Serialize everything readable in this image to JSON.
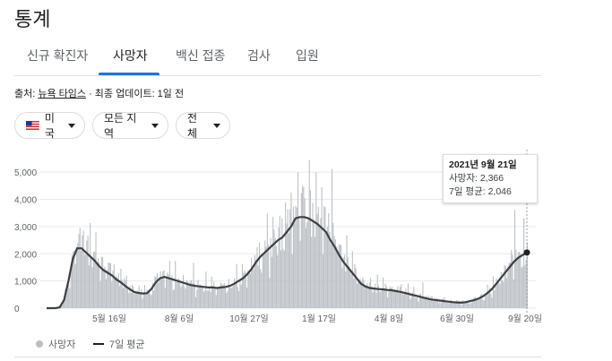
{
  "header": {
    "title": "통계"
  },
  "tabs": [
    {
      "label": "신규 확진자",
      "active": false
    },
    {
      "label": "사망자",
      "active": true
    },
    {
      "label": "백신 접종",
      "active": false
    },
    {
      "label": "검사",
      "active": false
    },
    {
      "label": "입원",
      "active": false
    }
  ],
  "source": {
    "prefix": "출처:",
    "link": "뉴욕 타임스",
    "suffix": "· 최종 업데이트: 1일 전"
  },
  "filters": {
    "country": {
      "label": "미국",
      "icon": "us-flag-icon"
    },
    "region": {
      "label": "모든 지역"
    },
    "scope": {
      "label": "전체"
    }
  },
  "tooltip": {
    "date": "2021년 9월 21일",
    "line1": "사망자: 2,366",
    "line2": "7일 평균: 2,046"
  },
  "legend": {
    "bars": "사망자",
    "line": "7일 평균"
  },
  "colors": {
    "bars": "#bdc1c6",
    "line": "#3c4043",
    "accent": "#1a73e8",
    "grid": "#e8eaed"
  },
  "chart_data": {
    "type": "bar",
    "series": [
      {
        "name": "사망자",
        "render": "bars"
      },
      {
        "name": "7일 평균",
        "render": "line"
      }
    ],
    "ylim": [
      0,
      5500
    ],
    "yticks": [
      "5,000",
      "4,000",
      "3,000",
      "2,000",
      "1,000",
      "0"
    ],
    "xticks": [
      "5월 16일",
      "8월 6일",
      "10월 27일",
      "1월 17일",
      "4월 8일",
      "6월 30일",
      "9월 20일"
    ],
    "avg_points": [
      [
        0,
        0
      ],
      [
        10,
        0
      ],
      [
        15,
        30
      ],
      [
        20,
        300
      ],
      [
        25,
        1000
      ],
      [
        30,
        1800
      ],
      [
        35,
        2200
      ],
      [
        40,
        2200
      ],
      [
        45,
        2050
      ],
      [
        50,
        1900
      ],
      [
        55,
        1750
      ],
      [
        60,
        1550
      ],
      [
        65,
        1400
      ],
      [
        70,
        1300
      ],
      [
        75,
        1200
      ],
      [
        80,
        1050
      ],
      [
        85,
        950
      ],
      [
        90,
        820
      ],
      [
        95,
        700
      ],
      [
        100,
        600
      ],
      [
        105,
        560
      ],
      [
        110,
        540
      ],
      [
        115,
        550
      ],
      [
        120,
        700
      ],
      [
        125,
        950
      ],
      [
        130,
        1100
      ],
      [
        135,
        1150
      ],
      [
        140,
        1100
      ],
      [
        145,
        1050
      ],
      [
        150,
        1000
      ],
      [
        155,
        950
      ],
      [
        160,
        900
      ],
      [
        165,
        850
      ],
      [
        170,
        820
      ],
      [
        175,
        800
      ],
      [
        180,
        780
      ],
      [
        185,
        760
      ],
      [
        190,
        760
      ],
      [
        195,
        740
      ],
      [
        200,
        760
      ],
      [
        205,
        780
      ],
      [
        210,
        820
      ],
      [
        215,
        900
      ],
      [
        220,
        1000
      ],
      [
        225,
        1100
      ],
      [
        230,
        1250
      ],
      [
        235,
        1450
      ],
      [
        240,
        1700
      ],
      [
        245,
        1900
      ],
      [
        250,
        2050
      ],
      [
        255,
        2200
      ],
      [
        260,
        2350
      ],
      [
        265,
        2500
      ],
      [
        270,
        2600
      ],
      [
        275,
        2800
      ],
      [
        280,
        3000
      ],
      [
        285,
        3300
      ],
      [
        290,
        3350
      ],
      [
        295,
        3350
      ],
      [
        300,
        3300
      ],
      [
        305,
        3200
      ],
      [
        310,
        3100
      ],
      [
        315,
        2950
      ],
      [
        320,
        2800
      ],
      [
        325,
        2500
      ],
      [
        330,
        2250
      ],
      [
        335,
        1950
      ],
      [
        340,
        1700
      ],
      [
        345,
        1500
      ],
      [
        350,
        1300
      ],
      [
        355,
        1100
      ],
      [
        360,
        900
      ],
      [
        365,
        800
      ],
      [
        370,
        740
      ],
      [
        375,
        720
      ],
      [
        380,
        700
      ],
      [
        385,
        690
      ],
      [
        390,
        670
      ],
      [
        395,
        660
      ],
      [
        400,
        630
      ],
      [
        405,
        600
      ],
      [
        410,
        560
      ],
      [
        415,
        520
      ],
      [
        420,
        480
      ],
      [
        425,
        440
      ],
      [
        430,
        400
      ],
      [
        435,
        360
      ],
      [
        440,
        320
      ],
      [
        445,
        300
      ],
      [
        450,
        280
      ],
      [
        455,
        260
      ],
      [
        460,
        240
      ],
      [
        465,
        220
      ],
      [
        470,
        210
      ],
      [
        475,
        200
      ],
      [
        480,
        220
      ],
      [
        485,
        260
      ],
      [
        490,
        300
      ],
      [
        495,
        360
      ],
      [
        500,
        440
      ],
      [
        505,
        560
      ],
      [
        510,
        700
      ],
      [
        515,
        900
      ],
      [
        520,
        1100
      ],
      [
        525,
        1300
      ],
      [
        530,
        1500
      ],
      [
        535,
        1700
      ],
      [
        540,
        1850
      ],
      [
        545,
        1950
      ],
      [
        550,
        2046
      ]
    ]
  }
}
